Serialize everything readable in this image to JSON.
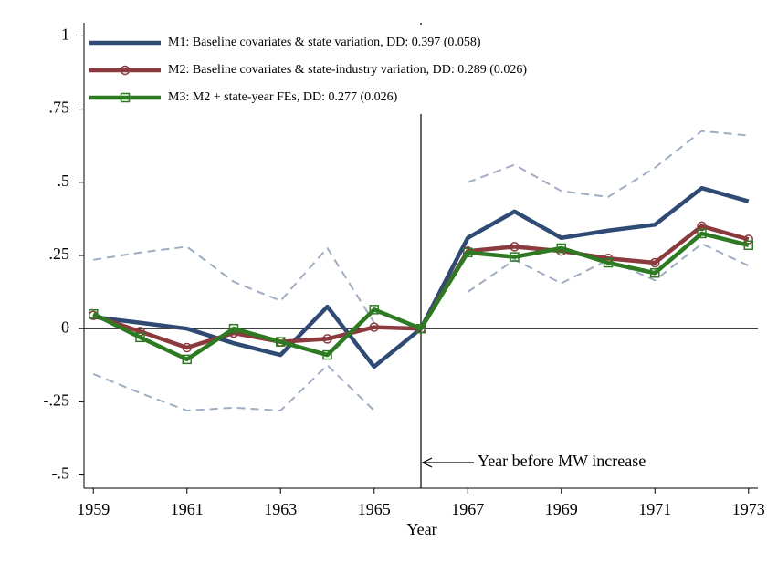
{
  "chart_data": {
    "type": "line",
    "x_label": "Year",
    "x": [
      1959,
      1960,
      1961,
      1962,
      1963,
      1964,
      1965,
      1966,
      1967,
      1968,
      1969,
      1970,
      1971,
      1972,
      1973
    ],
    "series": [
      {
        "name": "M1: Baseline covariates & state variation, DD: 0.397 (0.058)",
        "color": "#2f4b74",
        "marker": "none",
        "style": "solid",
        "values": [
          0.04,
          0.02,
          0.0,
          -0.05,
          -0.09,
          0.075,
          -0.13,
          0,
          0.31,
          0.4,
          0.31,
          0.335,
          0.355,
          0.48,
          0.435
        ]
      },
      {
        "name": "M2: Baseline covariates & state-industry variation, DD: 0.289 (0.026)",
        "color": "#8b3a3e",
        "marker": "circle",
        "style": "solid",
        "values": [
          0.045,
          -0.01,
          -0.065,
          -0.015,
          -0.045,
          -0.035,
          0.005,
          0,
          0.265,
          0.28,
          0.265,
          0.24,
          0.225,
          0.35,
          0.305
        ]
      },
      {
        "name": "M3: M2 + state-year FEs, DD: 0.277 (0.026)",
        "color": "#2d7a22",
        "marker": "square",
        "style": "solid",
        "values": [
          0.05,
          -0.03,
          -0.105,
          0.0,
          -0.045,
          -0.09,
          0.065,
          0,
          0.26,
          0.245,
          0.275,
          0.225,
          0.19,
          0.325,
          0.285
        ]
      },
      {
        "color": "#9fadc2",
        "marker": "none",
        "style": "dashed",
        "values": [
          0.235,
          0.26,
          0.28,
          0.16,
          0.095,
          0.275,
          0.02,
          null,
          0.5,
          0.56,
          0.47,
          0.45,
          0.55,
          0.675,
          0.66
        ]
      },
      {
        "color": "#9fadc2",
        "marker": "none",
        "style": "dashed",
        "values": [
          -0.155,
          -0.22,
          -0.28,
          -0.27,
          -0.28,
          -0.125,
          -0.28,
          null,
          0.125,
          0.235,
          0.155,
          0.235,
          0.165,
          0.29,
          0.215
        ]
      }
    ],
    "xlim": [
      1958.8,
      1973.2
    ],
    "xticks": [
      1959,
      1961,
      1963,
      1965,
      1967,
      1969,
      1971,
      1973
    ],
    "ylim": [
      -0.545,
      1.045
    ],
    "yticks": [
      1,
      {
        "value": 0.75,
        "label": ".75"
      },
      {
        "value": 0.5,
        "label": ".5"
      },
      {
        "value": 0.25,
        "label": ".25"
      },
      0,
      {
        "value": -0.25,
        "label": "-.25"
      },
      {
        "value": -0.5,
        "label": "-.5"
      }
    ],
    "vline": 1966,
    "hline": 0,
    "annotation": "Year before MW increase",
    "legend": "upper left"
  }
}
